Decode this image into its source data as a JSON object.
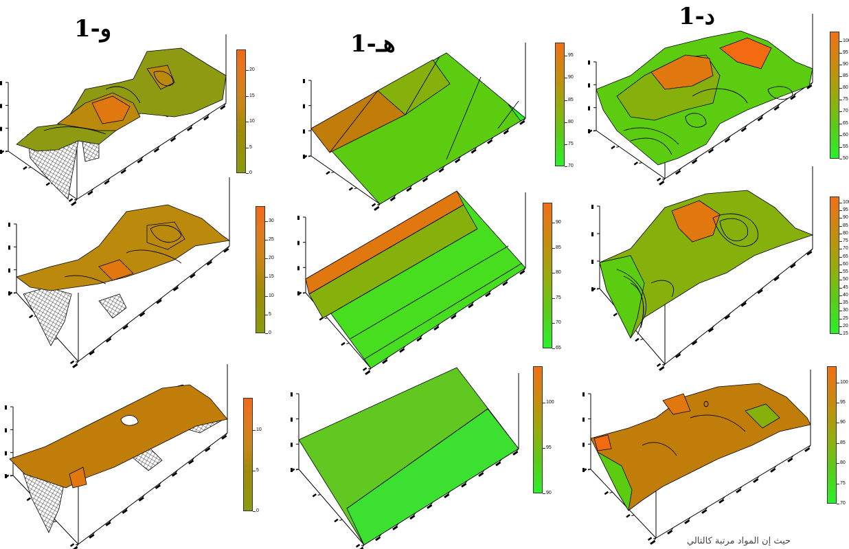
{
  "column_titles": {
    "right": "د-1",
    "middle": "هـ-1",
    "left": "و-1"
  },
  "caption": "حيث إن المواد مرتبة كالتالي",
  "chart_data": [
    {
      "type": "heatmap",
      "id": "r1c1",
      "scale": "orange-olive",
      "colorbar": {
        "min": 0,
        "max": 24,
        "ticks": [
          0,
          5,
          10,
          15,
          20
        ]
      }
    },
    {
      "type": "heatmap",
      "id": "r1c2",
      "scale": "orange-green",
      "colorbar": {
        "min": 70,
        "max": 98,
        "ticks": [
          70,
          75,
          80,
          85,
          90,
          95
        ]
      }
    },
    {
      "type": "heatmap",
      "id": "r1c3",
      "scale": "orange-green",
      "colorbar": {
        "min": 50,
        "max": 104,
        "ticks": [
          50,
          55,
          60,
          65,
          70,
          75,
          80,
          85,
          90,
          95,
          100
        ]
      }
    },
    {
      "type": "heatmap",
      "id": "r2c1",
      "scale": "orange-olive",
      "colorbar": {
        "min": 0,
        "max": 34,
        "ticks": [
          0,
          5,
          10,
          15,
          20,
          25,
          30
        ]
      }
    },
    {
      "type": "heatmap",
      "id": "r2c2",
      "scale": "orange-green",
      "colorbar": {
        "min": 65,
        "max": 94,
        "ticks": [
          65,
          70,
          75,
          80,
          85,
          90
        ]
      }
    },
    {
      "type": "heatmap",
      "id": "r2c3",
      "scale": "orange-green",
      "colorbar": {
        "min": 15,
        "max": 104,
        "ticks": [
          15,
          20,
          25,
          30,
          35,
          40,
          45,
          50,
          55,
          60,
          65,
          70,
          75,
          80,
          85,
          90,
          95,
          100
        ]
      }
    },
    {
      "type": "heatmap",
      "id": "r3c1",
      "scale": "orange-olive",
      "colorbar": {
        "min": 0,
        "max": 14,
        "ticks": [
          0,
          5,
          10
        ]
      }
    },
    {
      "type": "heatmap",
      "id": "r3c2",
      "scale": "orange-green",
      "colorbar": {
        "min": 90,
        "max": 104,
        "ticks": [
          90,
          95,
          100
        ]
      }
    },
    {
      "type": "heatmap",
      "id": "r3c3",
      "scale": "orange-green",
      "colorbar": {
        "min": 70,
        "max": 104,
        "ticks": [
          70,
          75,
          80,
          85,
          90,
          95,
          100
        ]
      }
    }
  ]
}
